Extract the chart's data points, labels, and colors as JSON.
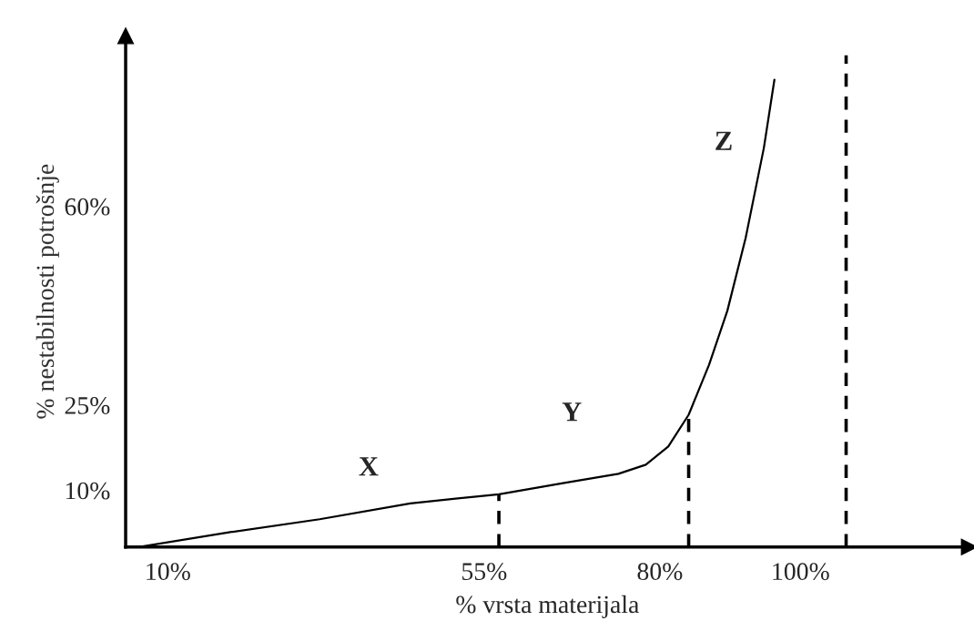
{
  "chart_data": {
    "type": "line",
    "xlabel": "% vrsta materijala",
    "ylabel": "% nestabilnosti potrošnje",
    "xlim": [
      4,
      124
    ],
    "ylim": [
      0,
      90
    ],
    "xticks": [
      {
        "value": 10,
        "label": "10%"
      },
      {
        "value": 55,
        "label": "55%"
      },
      {
        "value": 80,
        "label": "80%"
      },
      {
        "value": 100,
        "label": "100%"
      }
    ],
    "yticks": [
      {
        "value": 10,
        "label": "10%"
      },
      {
        "value": 25,
        "label": "25%"
      },
      {
        "value": 60,
        "label": "60%"
      }
    ],
    "grid": false,
    "legend": false,
    "marker": "none",
    "series": [
      {
        "color": "#000000",
        "line_style": "solid",
        "x": [
          5.8,
          18.7,
          31.6,
          44.5,
          57.1,
          66.4,
          74.1,
          78.0,
          81.2,
          84.1,
          87.0,
          89.6,
          92.2,
          94.8,
          96.3
        ],
        "values": [
          0,
          2.6,
          4.9,
          7.7,
          9.3,
          11.3,
          12.9,
          14.5,
          17.7,
          23.3,
          32.1,
          41.6,
          54.4,
          70.3,
          82.3
        ]
      },
      {
        "color": "#000000",
        "line_style": "dashed",
        "x": [
          57.1,
          57.1
        ],
        "values": [
          0,
          9.3
        ]
      },
      {
        "color": "#000000",
        "line_style": "dashed",
        "x": [
          84.1,
          84.1
        ],
        "values": [
          0,
          23.3
        ]
      },
      {
        "color": "#000000",
        "line_style": "dashed",
        "x": [
          106.5,
          106.5
        ],
        "values": [
          0,
          86.6
        ]
      }
    ],
    "annotations": [
      "X",
      "Y",
      "Z"
    ]
  }
}
